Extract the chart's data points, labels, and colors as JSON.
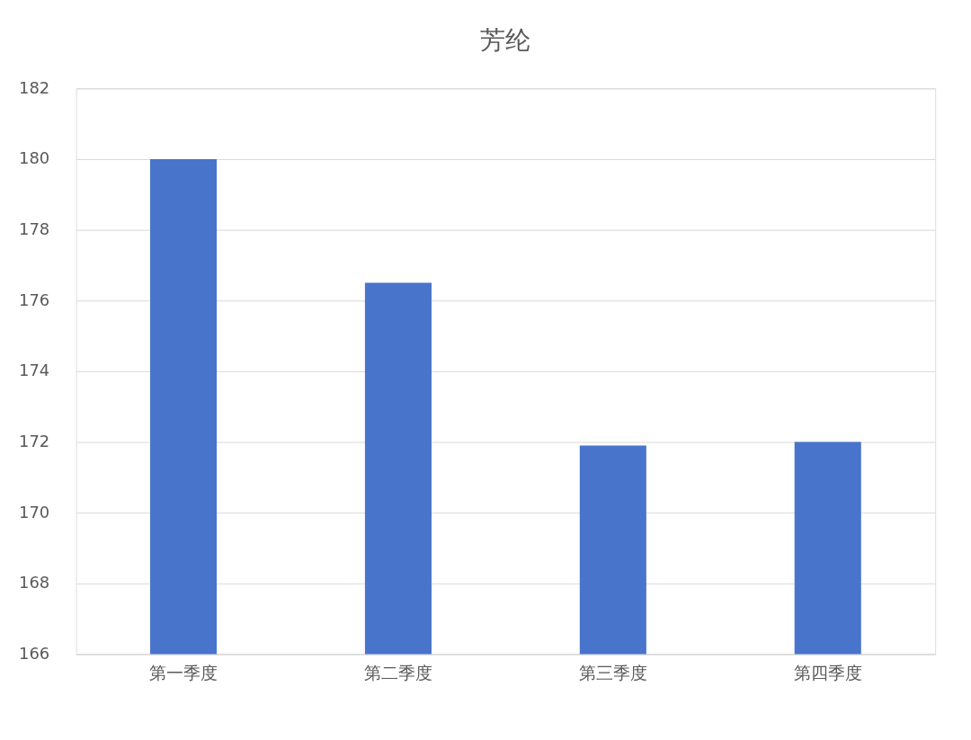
{
  "chart_data": {
    "type": "bar",
    "title": "芳纶",
    "categories": [
      "第一季度",
      "第二季度",
      "第三季度",
      "第四季度"
    ],
    "values": [
      180,
      176.5,
      171.9,
      172
    ],
    "color": "#4874cb",
    "ylim": [
      166,
      182
    ],
    "yticks": [
      166,
      168,
      170,
      172,
      174,
      176,
      178,
      180,
      182
    ],
    "grid": "y"
  }
}
